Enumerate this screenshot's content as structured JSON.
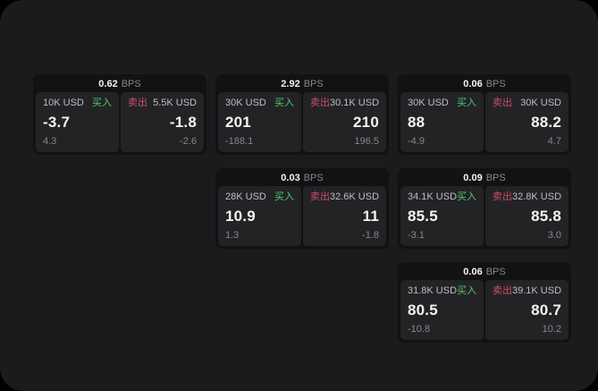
{
  "labels": {
    "buy": "买入",
    "sell": "卖出",
    "bps_unit": "BPS"
  },
  "colors": {
    "backdrop": "#000000",
    "window_bg": "#1b1b1d",
    "card_bg": "#121214",
    "panel_bg": "#232326",
    "buy_green": "#4ccb6e",
    "sell_red": "#cb4f66",
    "text_bright": "#f4f4f6",
    "text_label": "#bebec3",
    "text_dim": "#87878c"
  },
  "cards": [
    {
      "row": 1,
      "col": 1,
      "bps": "0.62",
      "buy": {
        "size": "10K USD",
        "price": "-3.7",
        "delta": "4.3"
      },
      "sell": {
        "size": "5.5K USD",
        "price": "-1.8",
        "delta": "-2.6"
      }
    },
    {
      "row": 1,
      "col": 2,
      "bps": "2.92",
      "buy": {
        "size": "30K USD",
        "price": "201",
        "delta": "-188.1"
      },
      "sell": {
        "size": "30.1K USD",
        "price": "210",
        "delta": "196.5"
      }
    },
    {
      "row": 1,
      "col": 3,
      "bps": "0.06",
      "buy": {
        "size": "30K USD",
        "price": "88",
        "delta": "-4.9"
      },
      "sell": {
        "size": "30K USD",
        "price": "88.2",
        "delta": "4.7"
      }
    },
    {
      "row": 2,
      "col": 2,
      "bps": "0.03",
      "buy": {
        "size": "28K USD",
        "price": "10.9",
        "delta": "1.3"
      },
      "sell": {
        "size": "32.6K USD",
        "price": "11",
        "delta": "-1.8"
      }
    },
    {
      "row": 2,
      "col": 3,
      "bps": "0.09",
      "buy": {
        "size": "34.1K USD",
        "price": "85.5",
        "delta": "-3.1"
      },
      "sell": {
        "size": "32.8K USD",
        "price": "85.8",
        "delta": "3.0"
      }
    },
    {
      "row": 3,
      "col": 3,
      "bps": "0.06",
      "buy": {
        "size": "31.8K USD",
        "price": "80.5",
        "delta": "-10.8"
      },
      "sell": {
        "size": "39.1K USD",
        "price": "80.7",
        "delta": "10.2"
      }
    }
  ]
}
